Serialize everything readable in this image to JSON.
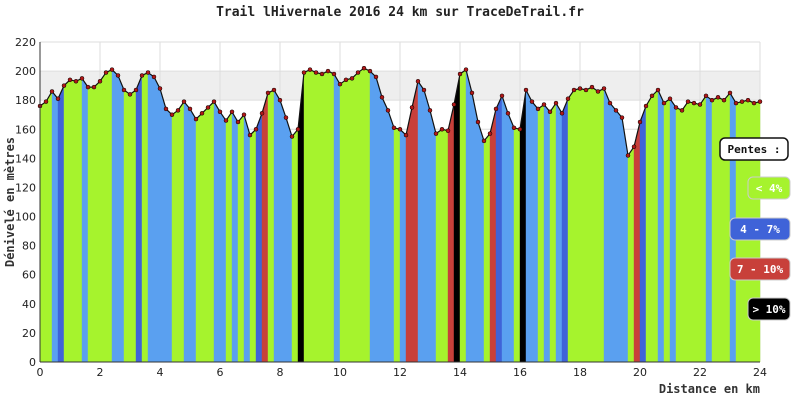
{
  "chart_data": {
    "type": "area",
    "title": "Trail lHivernale 2016  24 km  sur TraceDeTrail.fr",
    "xlabel": "Distance en km",
    "ylabel": "Dénivelé en mètres",
    "xlim": [
      0,
      24
    ],
    "ylim": [
      0,
      220
    ],
    "x_ticks": [
      "0",
      "2",
      "4",
      "6",
      "8",
      "10",
      "12",
      "14",
      "16",
      "18",
      "20",
      "22",
      "24"
    ],
    "y_ticks": [
      "0",
      "20",
      "40",
      "60",
      "80",
      "100",
      "120",
      "140",
      "160",
      "180",
      "200",
      "220"
    ],
    "grid": true,
    "band": [
      180,
      200
    ],
    "series": [
      {
        "values": [
          {
            "x": 0.0,
            "y": 176
          },
          {
            "x": 0.2,
            "y": 179
          },
          {
            "x": 0.4,
            "y": 186
          },
          {
            "x": 0.6,
            "y": 181
          },
          {
            "x": 0.8,
            "y": 190
          },
          {
            "x": 1.0,
            "y": 194
          },
          {
            "x": 1.2,
            "y": 193
          },
          {
            "x": 1.4,
            "y": 195
          },
          {
            "x": 1.6,
            "y": 189
          },
          {
            "x": 1.8,
            "y": 189
          },
          {
            "x": 2.0,
            "y": 193
          },
          {
            "x": 2.2,
            "y": 199
          },
          {
            "x": 2.4,
            "y": 201
          },
          {
            "x": 2.6,
            "y": 197
          },
          {
            "x": 2.8,
            "y": 187
          },
          {
            "x": 3.0,
            "y": 184
          },
          {
            "x": 3.2,
            "y": 187
          },
          {
            "x": 3.4,
            "y": 197
          },
          {
            "x": 3.6,
            "y": 199
          },
          {
            "x": 3.8,
            "y": 196
          },
          {
            "x": 4.0,
            "y": 188
          },
          {
            "x": 4.2,
            "y": 174
          },
          {
            "x": 4.4,
            "y": 170
          },
          {
            "x": 4.6,
            "y": 173
          },
          {
            "x": 4.8,
            "y": 179
          },
          {
            "x": 5.0,
            "y": 174
          },
          {
            "x": 5.2,
            "y": 167
          },
          {
            "x": 5.4,
            "y": 171
          },
          {
            "x": 5.6,
            "y": 175
          },
          {
            "x": 5.8,
            "y": 179
          },
          {
            "x": 6.0,
            "y": 172
          },
          {
            "x": 6.2,
            "y": 166
          },
          {
            "x": 6.4,
            "y": 172
          },
          {
            "x": 6.6,
            "y": 165
          },
          {
            "x": 6.8,
            "y": 170
          },
          {
            "x": 7.0,
            "y": 156
          },
          {
            "x": 7.2,
            "y": 160
          },
          {
            "x": 7.4,
            "y": 171
          },
          {
            "x": 7.6,
            "y": 185
          },
          {
            "x": 7.8,
            "y": 187
          },
          {
            "x": 8.0,
            "y": 180
          },
          {
            "x": 8.2,
            "y": 168
          },
          {
            "x": 8.4,
            "y": 155
          },
          {
            "x": 8.6,
            "y": 160
          },
          {
            "x": 8.8,
            "y": 199
          },
          {
            "x": 9.0,
            "y": 201
          },
          {
            "x": 9.2,
            "y": 199
          },
          {
            "x": 9.4,
            "y": 198
          },
          {
            "x": 9.6,
            "y": 200
          },
          {
            "x": 9.8,
            "y": 198
          },
          {
            "x": 10.0,
            "y": 191
          },
          {
            "x": 10.2,
            "y": 194
          },
          {
            "x": 10.4,
            "y": 195
          },
          {
            "x": 10.6,
            "y": 199
          },
          {
            "x": 10.8,
            "y": 202
          },
          {
            "x": 11.0,
            "y": 200
          },
          {
            "x": 11.2,
            "y": 196
          },
          {
            "x": 11.4,
            "y": 182
          },
          {
            "x": 11.6,
            "y": 173
          },
          {
            "x": 11.8,
            "y": 161
          },
          {
            "x": 12.0,
            "y": 160
          },
          {
            "x": 12.2,
            "y": 156
          },
          {
            "x": 12.4,
            "y": 175
          },
          {
            "x": 12.6,
            "y": 193
          },
          {
            "x": 12.8,
            "y": 187
          },
          {
            "x": 13.0,
            "y": 173
          },
          {
            "x": 13.2,
            "y": 157
          },
          {
            "x": 13.4,
            "y": 160
          },
          {
            "x": 13.6,
            "y": 159
          },
          {
            "x": 13.8,
            "y": 177
          },
          {
            "x": 14.0,
            "y": 198
          },
          {
            "x": 14.2,
            "y": 201
          },
          {
            "x": 14.4,
            "y": 185
          },
          {
            "x": 14.6,
            "y": 165
          },
          {
            "x": 14.8,
            "y": 152
          },
          {
            "x": 15.0,
            "y": 157
          },
          {
            "x": 15.2,
            "y": 174
          },
          {
            "x": 15.4,
            "y": 183
          },
          {
            "x": 15.6,
            "y": 171
          },
          {
            "x": 15.8,
            "y": 161
          },
          {
            "x": 16.0,
            "y": 160
          },
          {
            "x": 16.2,
            "y": 187
          },
          {
            "x": 16.4,
            "y": 179
          },
          {
            "x": 16.6,
            "y": 174
          },
          {
            "x": 16.8,
            "y": 177
          },
          {
            "x": 17.0,
            "y": 172
          },
          {
            "x": 17.2,
            "y": 178
          },
          {
            "x": 17.4,
            "y": 171
          },
          {
            "x": 17.6,
            "y": 181
          },
          {
            "x": 17.8,
            "y": 187
          },
          {
            "x": 18.0,
            "y": 188
          },
          {
            "x": 18.2,
            "y": 187
          },
          {
            "x": 18.4,
            "y": 189
          },
          {
            "x": 18.6,
            "y": 186
          },
          {
            "x": 18.8,
            "y": 188
          },
          {
            "x": 19.0,
            "y": 178
          },
          {
            "x": 19.2,
            "y": 173
          },
          {
            "x": 19.4,
            "y": 168
          },
          {
            "x": 19.6,
            "y": 142
          },
          {
            "x": 19.8,
            "y": 148
          },
          {
            "x": 20.0,
            "y": 165
          },
          {
            "x": 20.2,
            "y": 176
          },
          {
            "x": 20.4,
            "y": 183
          },
          {
            "x": 20.6,
            "y": 187
          },
          {
            "x": 20.8,
            "y": 178
          },
          {
            "x": 21.0,
            "y": 181
          },
          {
            "x": 21.2,
            "y": 175
          },
          {
            "x": 21.4,
            "y": 173
          },
          {
            "x": 21.6,
            "y": 179
          },
          {
            "x": 21.8,
            "y": 178
          },
          {
            "x": 22.0,
            "y": 177
          },
          {
            "x": 22.2,
            "y": 183
          },
          {
            "x": 22.4,
            "y": 180
          },
          {
            "x": 22.6,
            "y": 182
          },
          {
            "x": 22.8,
            "y": 180
          },
          {
            "x": 23.0,
            "y": 185
          },
          {
            "x": 23.2,
            "y": 178
          },
          {
            "x": 23.4,
            "y": 179
          },
          {
            "x": 23.6,
            "y": 180
          },
          {
            "x": 23.8,
            "y": 178
          },
          {
            "x": 24.0,
            "y": 179
          }
        ]
      }
    ],
    "legend": {
      "title": "Pentes :",
      "placement": "right",
      "items": [
        {
          "label": "< 4%",
          "color": "#a6f32d",
          "text_color": "#ffffff"
        },
        {
          "label": "4 - 7%",
          "color": "#3f63d8",
          "text_color": "#ffffff"
        },
        {
          "label": "7 - 10%",
          "color": "#c8403a",
          "text_color": "#ffffff"
        },
        {
          "label": "> 10%",
          "color": "#000000",
          "text_color": "#ffffff"
        }
      ]
    },
    "colors": {
      "marker": "#b01818",
      "flat": "#a6f32d",
      "descent": "#5aa0f0",
      "medium": "#3f63d8",
      "steep": "#c8403a",
      "very_steep": "#000000",
      "band": "#eeeeee",
      "grid": "#dddddd"
    }
  }
}
